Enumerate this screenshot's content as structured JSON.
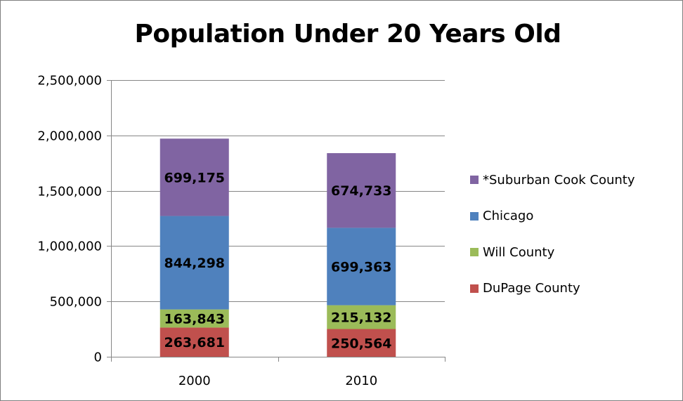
{
  "chart_data": {
    "type": "bar",
    "stacked": true,
    "title": "Population Under 20 Years Old",
    "xlabel": "",
    "ylabel": "",
    "categories": [
      "2000",
      "2010"
    ],
    "ylim": [
      0,
      2500000
    ],
    "yticks": [
      0,
      500000,
      1000000,
      1500000,
      2000000,
      2500000
    ],
    "ytick_labels": [
      "0",
      "500,000",
      "1,000,000",
      "1,500,000",
      "2,000,000",
      "2,500,000"
    ],
    "grid": true,
    "legend_position": "right",
    "series": [
      {
        "name": "DuPage County",
        "color": "#c0504d",
        "values": [
          263681,
          250564
        ],
        "labels": [
          "263,681",
          "250,564"
        ]
      },
      {
        "name": "Will County",
        "color": "#9bbb59",
        "values": [
          163843,
          215132
        ],
        "labels": [
          "163,843",
          "215,132"
        ]
      },
      {
        "name": "Chicago",
        "color": "#4f81bd",
        "values": [
          844298,
          699363
        ],
        "labels": [
          "844,298",
          "699,363"
        ]
      },
      {
        "name": "*Suburban Cook County",
        "color": "#8064a2",
        "values": [
          699175,
          674733
        ],
        "labels": [
          "699,175",
          "674,733"
        ]
      }
    ],
    "legend_order": [
      "*Suburban Cook County",
      "Chicago",
      "Will County",
      "DuPage County"
    ]
  }
}
